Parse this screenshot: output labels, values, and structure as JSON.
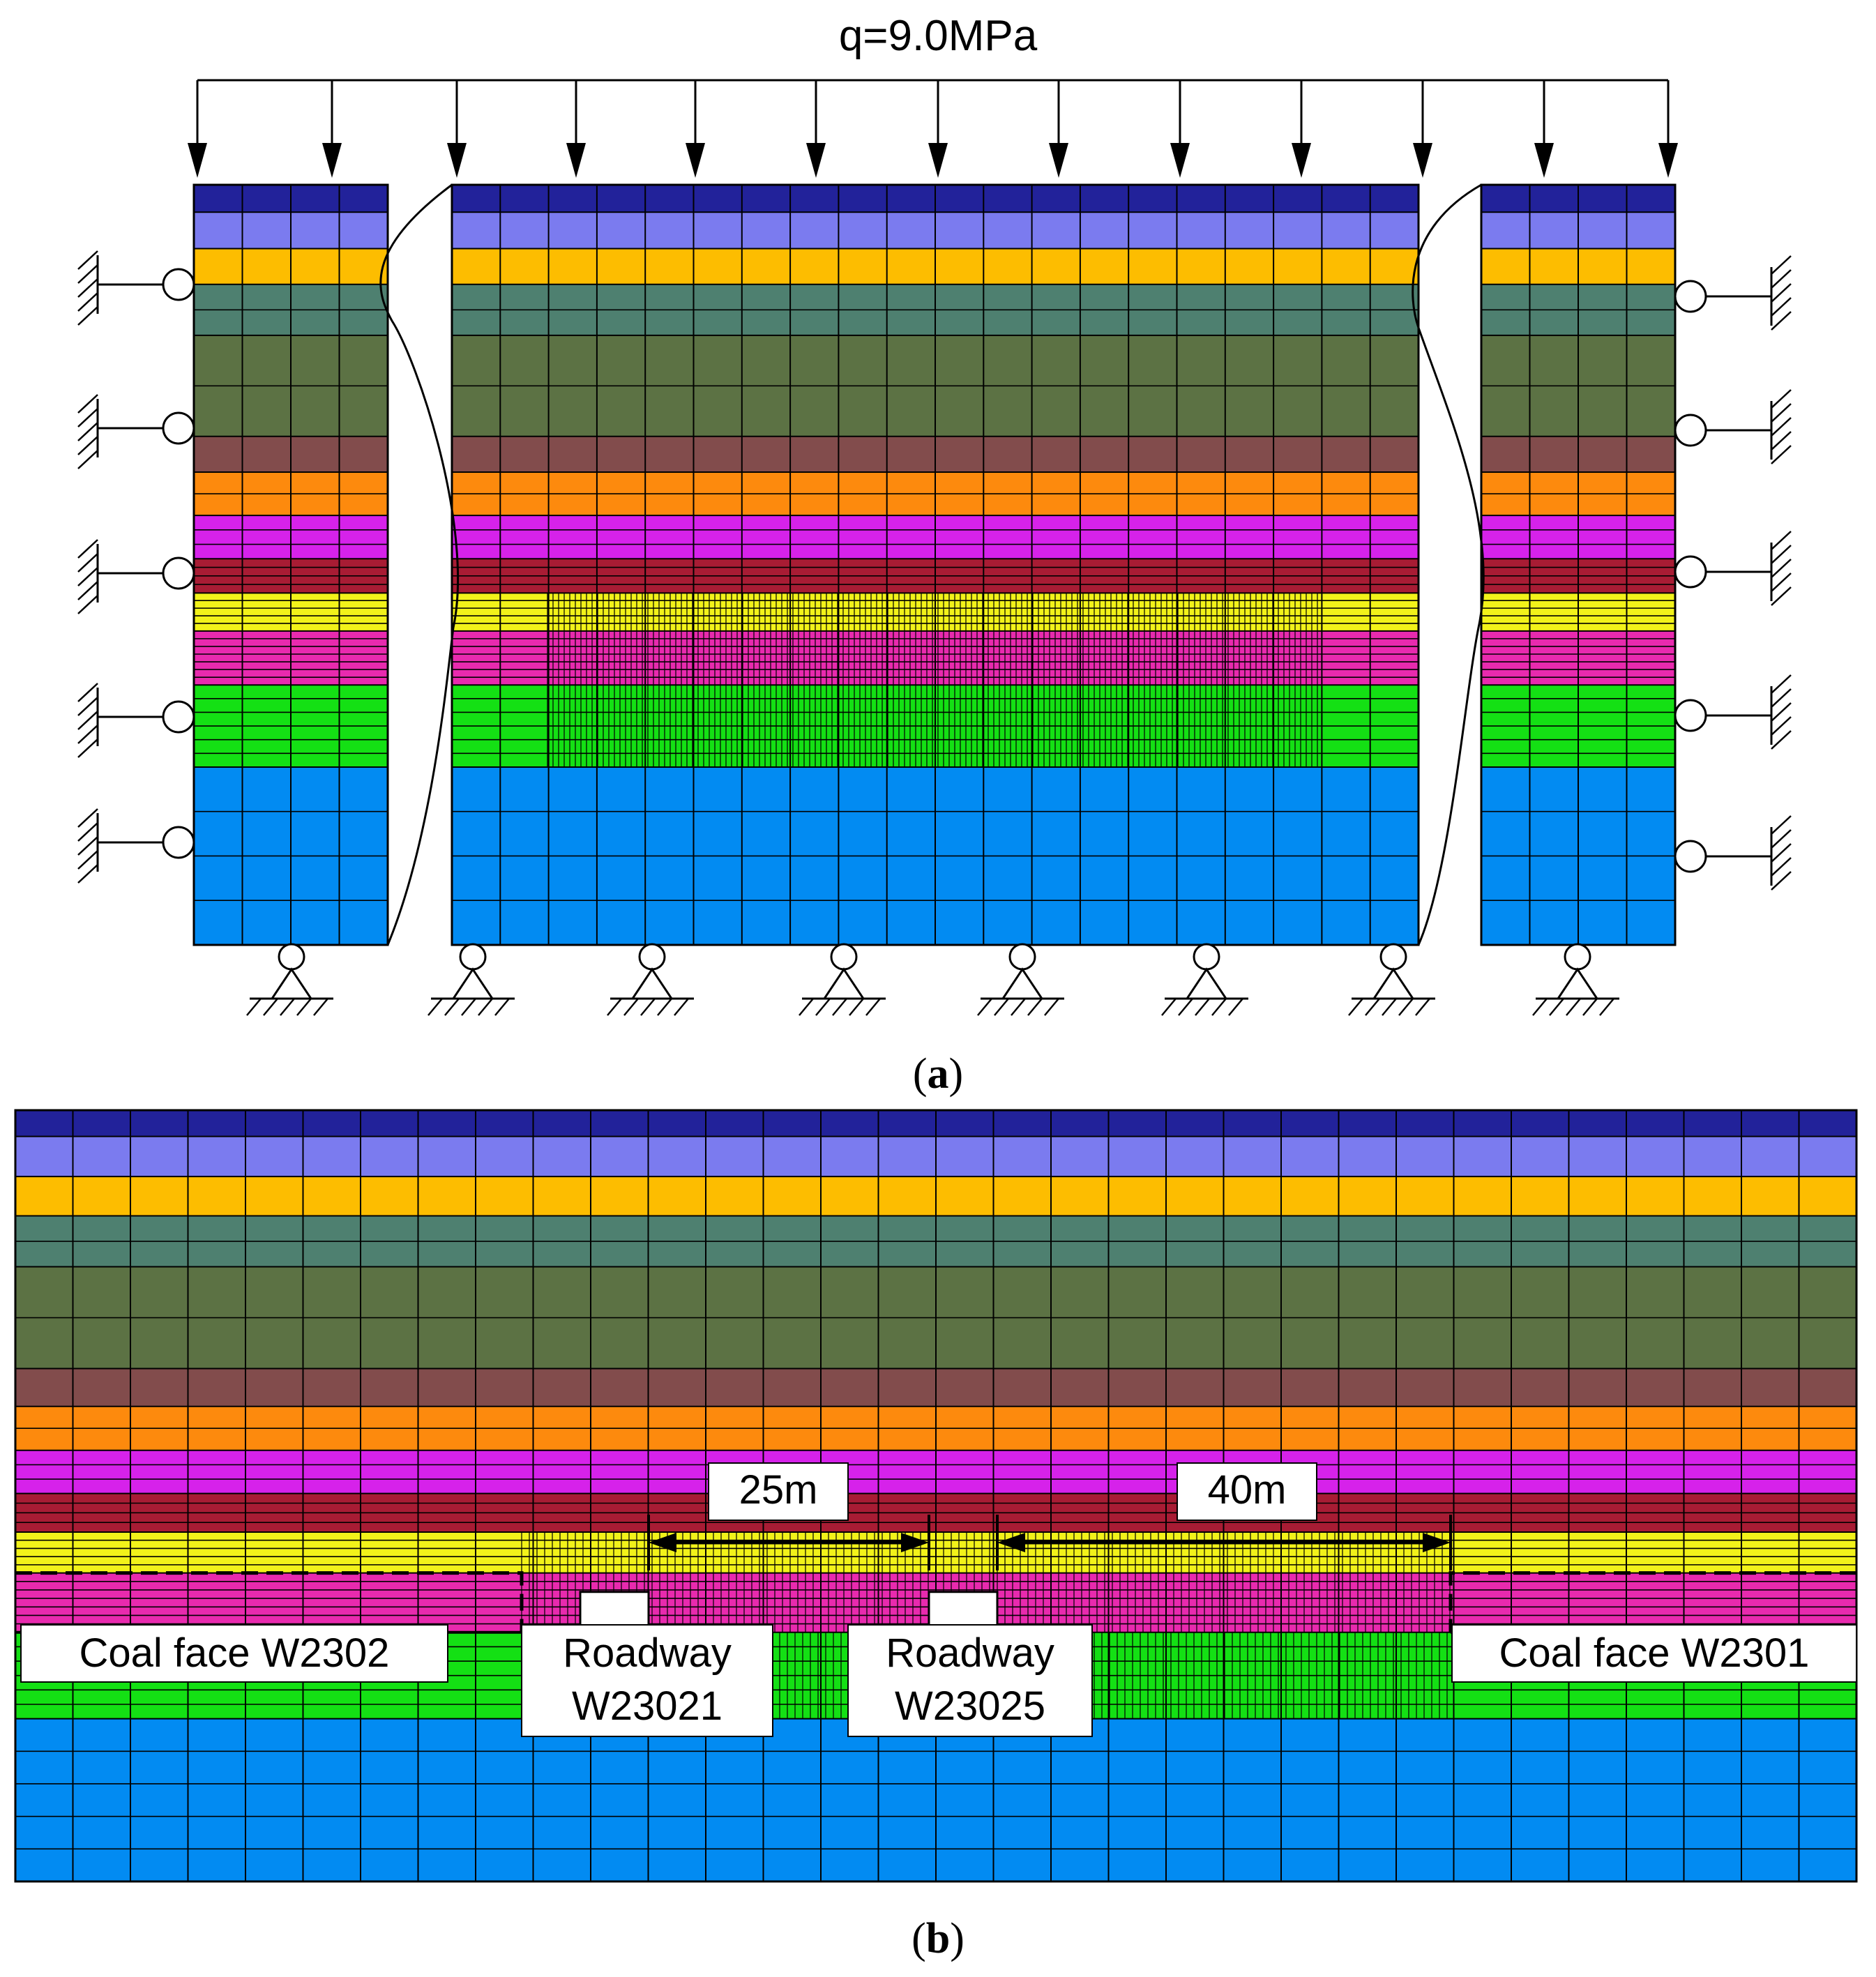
{
  "panel_a": {
    "load_label": "q=9.0MPa",
    "caption_open": "(",
    "caption_letter": "a",
    "caption_close": ")"
  },
  "panel_b": {
    "caption_open": "(",
    "caption_letter": "b",
    "caption_close": ")",
    "dim_left": "25m",
    "dim_right": "40m",
    "coal_face_left": "Coal face W2302",
    "coal_face_right": "Coal face W2301",
    "roadway_left_line1": "Roadway",
    "roadway_left_line2": "W23021",
    "roadway_right_line1": "Roadway",
    "roadway_right_line2": "W23025"
  },
  "strata_colors": [
    "#22229a",
    "#7b7bef",
    "#fdbd00",
    "#4e8070",
    "#5c7244",
    "#824c4c",
    "#fd8a0d",
    "#d622ea",
    "#a81c34",
    "#f2f21a",
    "#e82aae",
    "#14e014",
    "#028bf2"
  ],
  "colors": {
    "line": "#000000",
    "label_box": "#ffffff",
    "dashed_outline": "#000000"
  }
}
